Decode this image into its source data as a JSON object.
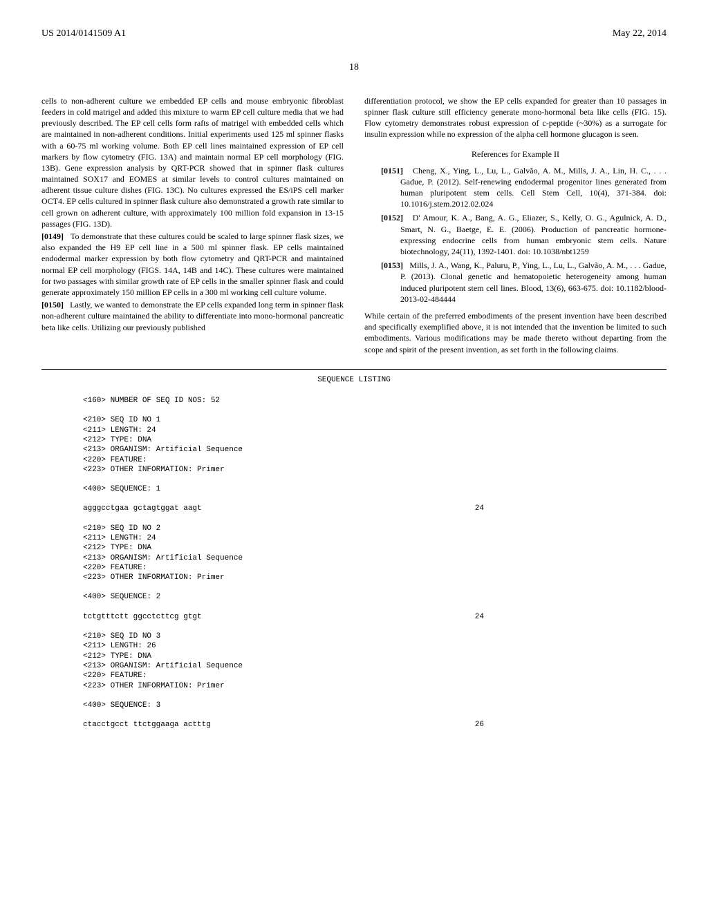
{
  "header": {
    "left": "US 2014/0141509 A1",
    "right": "May 22, 2014"
  },
  "page_number": "18",
  "col1": {
    "para_intro": "cells to non-adherent culture we embedded EP cells and mouse embryonic fibroblast feeders in cold matrigel and added this mixture to warm EP cell culture media that we had previously described. The EP cell cells form rafts of matrigel with embedded cells which are maintained in non-adherent conditions. Initial experiments used 125 ml spinner flasks with a 60-75 ml working volume. Both EP cell lines maintained expression of EP cell markers by flow cytometry (FIG. 13A) and maintain normal EP cell morphology (FIG. 13B). Gene expression analysis by QRT-PCR showed that in spinner flask cultures maintained SOX17 and EOMES at similar levels to control cultures maintained on adherent tissue culture dishes (FIG. 13C). No cultures expressed the ES/iPS cell marker OCT4. EP cells cultured in spinner flask culture also demonstrated a growth rate similar to cell grown on adherent culture, with approximately 100 million fold expansion in 13-15 passages (FIG. 13D).",
    "para_0149_num": "[0149]",
    "para_0149": "To demonstrate that these cultures could be scaled to large spinner flask sizes, we also expanded the H9 EP cell line in a 500 ml spinner flask. EP cells maintained endodermal marker expression by both flow cytometry and QRT-PCR and maintained normal EP cell morphology (FIGS. 14A, 14B and 14C). These cultures were maintained for two passages with similar growth rate of EP cells in the smaller spinner flask and could generate approximately 150 million EP cells in a 300 ml working cell culture volume.",
    "para_0150_num": "[0150]",
    "para_0150": "Lastly, we wanted to demonstrate the EP cells expanded long term in spinner flask non-adherent culture maintained the ability to differentiate into mono-hormonal pancreatic beta like cells. Utilizing our previously published"
  },
  "col2": {
    "para_cont": "differentiation protocol, we show the EP cells expanded for greater than 10 passages in spinner flask culture still efficiency generate mono-hormonal beta like cells (FIG. 15). Flow cytometry demonstrates robust expression of c-peptide (~30%) as a surrogate for insulin expression while no expression of the alpha cell hormone glucagon is seen.",
    "ref_heading": "References for Example II",
    "ref_0151_num": "[0151]",
    "ref_0151": "Cheng, X., Ying, L., Lu, L., Galvão, A. M., Mills, J. A., Lin, H. C., . . . Gadue, P. (2012). Self-renewing endodermal progenitor lines generated from human pluripotent stem cells. Cell Stem Cell, 10(4), 371-384. doi: 10.1016/j.stem.2012.02.024",
    "ref_0152_num": "[0152]",
    "ref_0152": "D' Amour, K. A., Bang, A. G., Eliazer, S., Kelly, O. G., Agulnick, A. D., Smart, N. G., Baetge, E. E. (2006). Production of pancreatic hormone-expressing endocrine cells from human embryonic stem cells. Nature biotechnology, 24(11), 1392-1401. doi: 10.1038/nbt1259",
    "ref_0153_num": "[0153]",
    "ref_0153": "Mills, J. A., Wang, K., Paluru, P., Ying, L., Lu, L., Galvão, A. M., . . . Gadue, P. (2013). Clonal genetic and hematopoietic heterogeneity among human induced pluripotent stem cell lines. Blood, 13(6), 663-675. doi: 10.1182/blood-2013-02-484444",
    "closing": "While certain of the preferred embodiments of the present invention have been described and specifically exemplified above, it is not intended that the invention be limited to such embodiments. Various modifications may be made thereto without departing from the scope and spirit of the present invention, as set forth in the following claims."
  },
  "seq_listing": {
    "title": "SEQUENCE LISTING",
    "num_seq": "<160> NUMBER OF SEQ ID NOS: 52",
    "seq1": {
      "l1": "<210> SEQ ID NO 1",
      "l2": "<211> LENGTH: 24",
      "l3": "<212> TYPE: DNA",
      "l4": "<213> ORGANISM: Artificial Sequence",
      "l5": "<220> FEATURE:",
      "l6": "<223> OTHER INFORMATION: Primer",
      "l7": "<400> SEQUENCE: 1",
      "data": "agggcctgaa gctagtggat aagt",
      "len": "24"
    },
    "seq2": {
      "l1": "<210> SEQ ID NO 2",
      "l2": "<211> LENGTH: 24",
      "l3": "<212> TYPE: DNA",
      "l4": "<213> ORGANISM: Artificial Sequence",
      "l5": "<220> FEATURE:",
      "l6": "<223> OTHER INFORMATION: Primer",
      "l7": "<400> SEQUENCE: 2",
      "data": "tctgtttctt ggcctcttcg gtgt",
      "len": "24"
    },
    "seq3": {
      "l1": "<210> SEQ ID NO 3",
      "l2": "<211> LENGTH: 26",
      "l3": "<212> TYPE: DNA",
      "l4": "<213> ORGANISM: Artificial Sequence",
      "l5": "<220> FEATURE:",
      "l6": "<223> OTHER INFORMATION: Primer",
      "l7": "<400> SEQUENCE: 3",
      "data": "ctacctgcct ttctggaaga actttg",
      "len": "26"
    }
  }
}
